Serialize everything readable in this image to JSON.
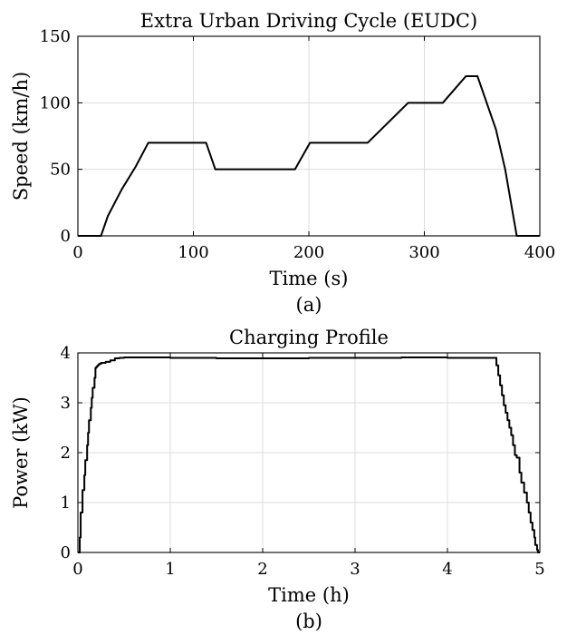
{
  "chart_data": [
    {
      "type": "line",
      "title": "Extra Urban Driving Cycle (EUDC)",
      "xlabel": "Time (s)",
      "ylabel": "Speed (km/h)",
      "caption": "(a)",
      "xlim": [
        0,
        400
      ],
      "ylim": [
        0,
        150
      ],
      "xticks": [
        0,
        100,
        200,
        300,
        400
      ],
      "yticks": [
        0,
        50,
        100,
        150
      ],
      "grid": true,
      "line_color": "#000000",
      "series": [
        {
          "x": [
            0,
            20,
            26,
            38,
            50,
            61,
            111,
            119,
            188,
            201,
            251,
            286,
            316,
            336,
            346,
            362,
            370,
            380,
            400
          ],
          "y": [
            0,
            0,
            15,
            35,
            52,
            70,
            70,
            50,
            50,
            70,
            70,
            100,
            100,
            120,
            120,
            80,
            50,
            0,
            0
          ]
        }
      ]
    },
    {
      "type": "line",
      "title": "Charging Profile",
      "xlabel": "Time (h)",
      "ylabel": "Power (kW)",
      "caption": "(b)",
      "xlim": [
        0,
        5
      ],
      "ylim": [
        0,
        4
      ],
      "xticks": [
        0,
        1,
        2,
        3,
        4,
        5
      ],
      "yticks": [
        0,
        1,
        2,
        3,
        4
      ],
      "grid": true,
      "step": true,
      "line_color": "#000000",
      "series": [
        {
          "x": [
            0,
            0.02,
            0.03,
            0.05,
            0.07,
            0.08,
            0.1,
            0.11,
            0.12,
            0.14,
            0.15,
            0.16,
            0.18,
            0.19,
            0.2,
            0.21,
            0.22,
            0.23,
            0.25,
            0.3,
            0.35,
            0.4,
            0.45,
            0.5,
            1.0,
            1.5,
            2.0,
            2.5,
            3.0,
            3.5,
            4.0,
            4.5,
            4.53,
            4.55,
            4.57,
            4.59,
            4.61,
            4.63,
            4.65,
            4.67,
            4.69,
            4.71,
            4.73,
            4.75,
            4.78,
            4.8,
            4.83,
            4.86,
            4.88,
            4.9,
            4.92,
            4.94,
            4.95,
            4.97,
            4.98,
            5.0
          ],
          "y": [
            0,
            0.3,
            0.8,
            1.25,
            1.55,
            1.85,
            2.15,
            2.4,
            2.65,
            2.9,
            3.1,
            3.3,
            3.5,
            3.7,
            3.72,
            3.74,
            3.76,
            3.78,
            3.8,
            3.82,
            3.85,
            3.89,
            3.9,
            3.91,
            3.9,
            3.89,
            3.89,
            3.9,
            3.9,
            3.91,
            3.9,
            3.9,
            3.75,
            3.55,
            3.35,
            3.15,
            2.95,
            2.8,
            2.65,
            2.5,
            2.35,
            2.15,
            1.95,
            1.9,
            1.6,
            1.4,
            1.2,
            1.0,
            0.8,
            0.6,
            0.45,
            0.3,
            0.15,
            0.05,
            0.0,
            0.0
          ]
        }
      ]
    }
  ]
}
